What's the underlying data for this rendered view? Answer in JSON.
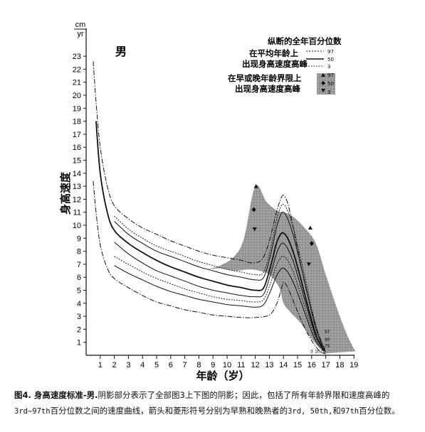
{
  "chart_data": {
    "type": "line",
    "sex_label": "男",
    "ylabel": "身高速度",
    "xlabel": "年龄（岁）",
    "yunit_top": "cm",
    "yunit_bottom": "yr",
    "x_ticks": [
      1,
      2,
      3,
      4,
      5,
      6,
      7,
      8,
      9,
      10,
      11,
      12,
      13,
      14,
      15,
      16,
      17,
      18,
      19
    ],
    "y_ticks": [
      1,
      2,
      3,
      4,
      5,
      6,
      7,
      8,
      9,
      10,
      11,
      12,
      13,
      14,
      15,
      16,
      17,
      18,
      19,
      20,
      21,
      22,
      23
    ],
    "xlim": [
      0,
      19
    ],
    "ylim": [
      0,
      23.8
    ],
    "grid": false,
    "legend": {
      "placement": "top-right",
      "title": "纵断的全年百分位数",
      "group1_label_line1": "在平均年龄上",
      "group1_label_line2": "出现身高速度高峰",
      "group1_items": [
        "97",
        "50",
        "3"
      ],
      "group2_label_line1": "在早或晚年龄界限上",
      "group2_label_line2": "出现身高速度高峰",
      "group2_items": [
        "97",
        "50",
        "3"
      ]
    },
    "shaded_band_upper": [
      [
        8.5,
        6.6
      ],
      [
        9.5,
        6.9
      ],
      [
        10.5,
        7.6
      ],
      [
        11.2,
        9.0
      ],
      [
        12,
        13.0
      ],
      [
        12.8,
        11.8
      ],
      [
        13.6,
        11.1
      ],
      [
        14.5,
        10.8
      ],
      [
        15.5,
        9.8
      ],
      [
        16.3,
        8.6
      ],
      [
        17,
        6.2
      ],
      [
        17.8,
        3.6
      ],
      [
        18.5,
        1.6
      ],
      [
        19.1,
        0.3
      ]
    ],
    "shaded_band_lower": [
      [
        9.5,
        6.7
      ],
      [
        10.5,
        6.5
      ],
      [
        11.5,
        6.6
      ],
      [
        12.3,
        6.5
      ],
      [
        13.0,
        6.2
      ],
      [
        13.7,
        5.2
      ],
      [
        14.0,
        4.0
      ],
      [
        14.5,
        3.3
      ],
      [
        15.2,
        2.5
      ],
      [
        15.9,
        1.4
      ],
      [
        16.6,
        0.5
      ],
      [
        17.0,
        0.15
      ]
    ],
    "series": [
      {
        "name": "97",
        "style": "dash-dot",
        "x": [
          0.5,
          0.7,
          1,
          1.5,
          2,
          3,
          4,
          5,
          6,
          7,
          8,
          9,
          10,
          11,
          11.8,
          12.5,
          13,
          13.5,
          13.8,
          14,
          14.3,
          14.6,
          15,
          15.5,
          16,
          16.5,
          17
        ],
        "y": [
          22.6,
          19.5,
          16.0,
          13.0,
          11.5,
          10.5,
          9.8,
          9.3,
          8.8,
          8.4,
          8.0,
          7.7,
          7.5,
          7.3,
          7.1,
          7.4,
          8.8,
          11.0,
          12.0,
          12.3,
          11.7,
          10.3,
          8.2,
          5.6,
          3.4,
          1.6,
          0.3
        ]
      },
      {
        "name": "97",
        "style": "dotted",
        "x": [
          2,
          3,
          4,
          5,
          6,
          7,
          8,
          9,
          10,
          11,
          12,
          12.6,
          13.1,
          13.5,
          13.8,
          14,
          14.3,
          14.7,
          15.1,
          15.6,
          16,
          16.4,
          16.8
        ],
        "y": [
          10.7,
          9.7,
          9.0,
          8.4,
          8.0,
          7.6,
          7.2,
          6.9,
          6.6,
          6.4,
          6.2,
          6.4,
          8.3,
          10.4,
          11.4,
          11.6,
          11.1,
          9.8,
          8.0,
          5.6,
          3.6,
          1.9,
          0.7
        ]
      },
      {
        "name": "",
        "style": "solid-thin",
        "x": [
          2,
          3,
          4,
          5,
          6,
          7,
          8,
          9,
          10,
          11,
          12,
          12.6,
          13.1,
          13.5,
          13.8,
          14,
          14.3,
          14.7,
          15.1,
          15.6,
          16,
          16.4,
          16.8
        ],
        "y": [
          10.3,
          9.3,
          8.6,
          8.0,
          7.6,
          7.2,
          6.8,
          6.5,
          6.2,
          6.0,
          5.8,
          6.0,
          7.8,
          9.8,
          10.8,
          11.0,
          10.5,
          9.2,
          7.5,
          5.2,
          3.3,
          1.7,
          0.6
        ]
      },
      {
        "name": "50",
        "style": "solid",
        "x": [
          0.7,
          1,
          1.5,
          2,
          3,
          4,
          5,
          6,
          7,
          8,
          9,
          10,
          11,
          12,
          12.6,
          13.1,
          13.5,
          13.8,
          14,
          14.3,
          14.7,
          15.1,
          15.6,
          16,
          16.4,
          16.9
        ],
        "y": [
          18.0,
          14.0,
          11.0,
          9.6,
          8.6,
          7.9,
          7.3,
          6.8,
          6.4,
          6.0,
          5.7,
          5.4,
          5.2,
          5.0,
          5.2,
          6.9,
          8.6,
          9.3,
          9.4,
          9.0,
          7.9,
          6.4,
          4.3,
          2.7,
          1.3,
          0.4
        ]
      },
      {
        "name": "",
        "style": "solid-thin",
        "x": [
          2,
          3,
          4,
          5,
          6,
          7,
          8,
          9,
          10,
          11,
          12,
          12.6,
          13.1,
          13.5,
          13.8,
          14,
          14.3,
          14.7,
          15.1,
          15.6,
          16,
          16.4,
          16.9
        ],
        "y": [
          8.7,
          7.8,
          7.1,
          6.5,
          6.1,
          5.7,
          5.3,
          5.0,
          4.8,
          4.6,
          4.5,
          4.7,
          6.3,
          7.8,
          8.5,
          8.6,
          8.2,
          7.2,
          5.8,
          3.9,
          2.4,
          1.2,
          0.35
        ]
      },
      {
        "name": "3",
        "style": "dotted",
        "x": [
          2,
          3,
          4,
          5,
          6,
          7,
          8,
          9,
          10,
          11,
          12,
          12.6,
          13.1,
          13.5,
          13.8,
          14,
          14.3,
          14.7,
          15.1,
          15.6,
          16,
          16.4,
          16.9
        ],
        "y": [
          7.6,
          7.0,
          6.4,
          5.9,
          5.5,
          5.1,
          4.8,
          4.5,
          4.3,
          4.2,
          4.1,
          4.3,
          5.6,
          6.9,
          7.5,
          7.6,
          7.3,
          6.4,
          5.1,
          3.4,
          2.1,
          1.0,
          0.3
        ]
      },
      {
        "name": "",
        "style": "solid-thin",
        "x": [
          2,
          3,
          4,
          5,
          6,
          7,
          8,
          9,
          10,
          11,
          12,
          12.6,
          13.1,
          13.5,
          13.8,
          14,
          14.3,
          14.7,
          15.1,
          15.6,
          16,
          16.4,
          17.0
        ],
        "y": [
          6.9,
          6.3,
          5.8,
          5.3,
          4.9,
          4.6,
          4.3,
          4.1,
          3.9,
          3.8,
          3.7,
          3.9,
          5.0,
          6.1,
          6.6,
          6.7,
          6.4,
          5.6,
          4.5,
          3.0,
          1.8,
          0.9,
          0.25
        ]
      },
      {
        "name": "3",
        "style": "dash-dot",
        "x": [
          0.5,
          0.7,
          1,
          1.5,
          2,
          3,
          4,
          5,
          6,
          7,
          8,
          9,
          10,
          11,
          12,
          13,
          13.5,
          13.8,
          14,
          14.3,
          14.8,
          15.3,
          15.8,
          16.2,
          16.6,
          17
        ],
        "y": [
          13.4,
          11.0,
          8.5,
          6.7,
          5.9,
          5.2,
          4.6,
          4.1,
          3.8,
          3.5,
          3.3,
          3.1,
          3.0,
          2.9,
          2.9,
          3.1,
          3.9,
          4.9,
          5.6,
          5.2,
          3.9,
          2.6,
          1.5,
          0.8,
          0.3,
          0.1
        ]
      }
    ],
    "markers_early_late": [
      {
        "shape": "triangle-up",
        "x": 12.05,
        "y": 13.0
      },
      {
        "shape": "diamond",
        "x": 11.9,
        "y": 11.2
      },
      {
        "shape": "triangle-down",
        "x": 11.95,
        "y": 9.7
      },
      {
        "shape": "triangle-up",
        "x": 15.9,
        "y": 9.8
      },
      {
        "shape": "diamond",
        "x": 16.0,
        "y": 8.6
      },
      {
        "shape": "triangle-down",
        "x": 15.8,
        "y": 7.0
      }
    ],
    "endpoint_labels": [
      {
        "text": "3",
        "x": 16.0,
        "y": 0.2
      },
      {
        "text": "10",
        "x": 16.4,
        "y": 0.2
      },
      {
        "text": "25",
        "x": 16.8,
        "y": 0.2
      },
      {
        "text": "97",
        "x": 17.1,
        "y": 1.7
      },
      {
        "text": "90",
        "x": 17.1,
        "y": 1.1
      },
      {
        "text": "75",
        "x": 17.1,
        "y": 0.6
      }
    ]
  },
  "caption": {
    "bold_part": "图4. 身高速度标准-男.",
    "text_part1": "阴影部分表示了全部图3上下图的阴影；因此，包括了所有年龄界限和速度高峰的",
    "text_part2_mono": "3rd~97th",
    "text_part3": "百分位数之间的速度曲线，箭头和菱形符号分别为早熟和晚熟者的",
    "text_part4_mono": "3rd, 50th,",
    "text_part5": "和",
    "text_part6_mono": "97th",
    "text_part7": "百分位数。"
  }
}
